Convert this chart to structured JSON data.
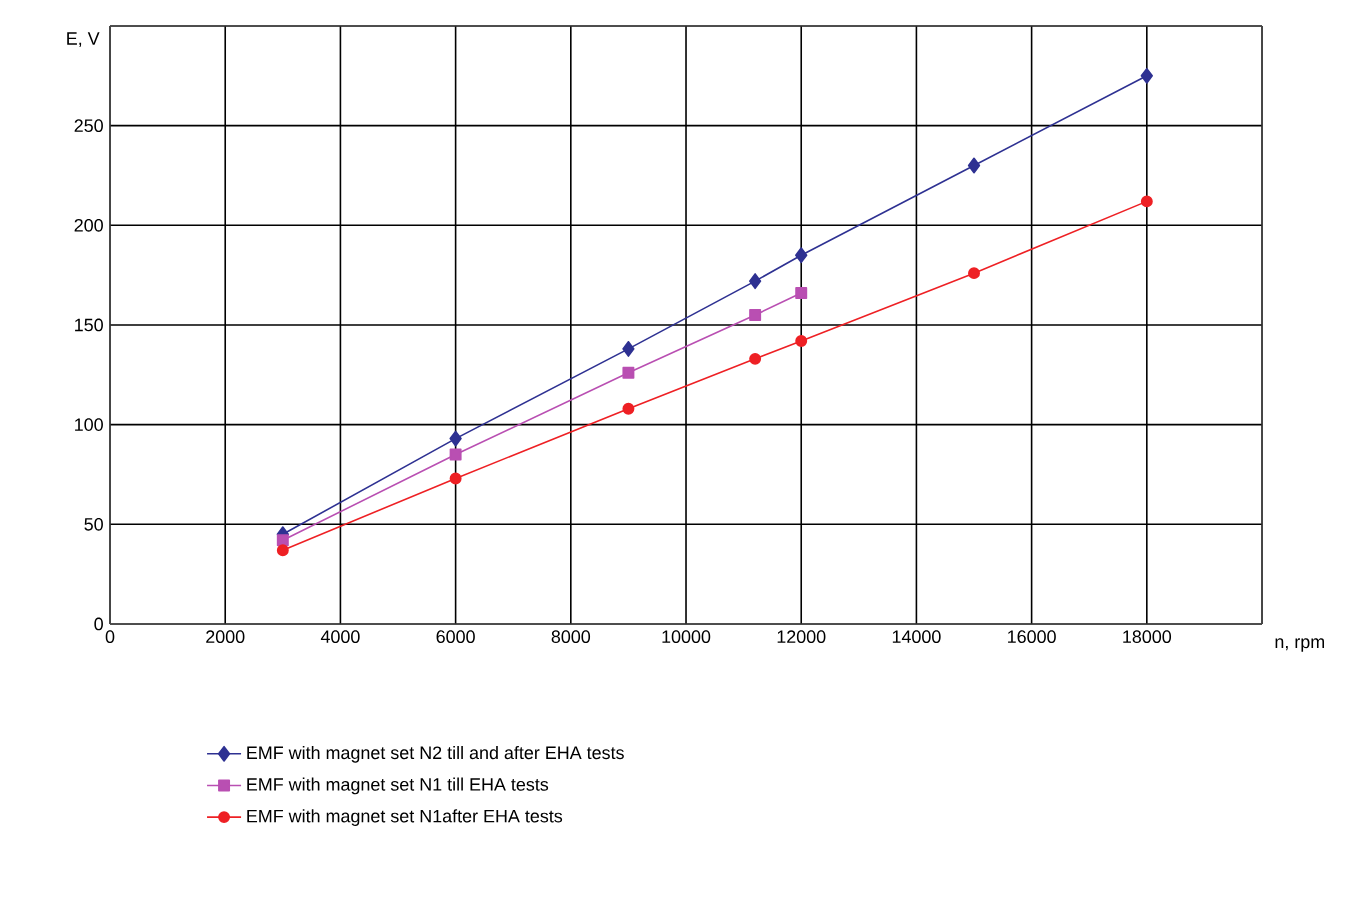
{
  "chart_data": {
    "type": "line",
    "xlabel": "n, rpm",
    "ylabel": "E, V",
    "xlim": [
      0,
      20000
    ],
    "ylim": [
      0,
      300
    ],
    "xticks": [
      0,
      2000,
      4000,
      6000,
      8000,
      10000,
      12000,
      14000,
      16000,
      18000,
      {
        "value": 20000,
        "label": null
      }
    ],
    "yticks": [
      0,
      50,
      100,
      150,
      200,
      250,
      {
        "value": 300,
        "label": null
      }
    ],
    "grid": true,
    "legend": "bottom",
    "series": [
      {
        "name": "EMF with magnet set N2 till and after EHA tests",
        "color": "#2e3192",
        "marker": "diamond",
        "x": [
          3000,
          6000,
          9000,
          11200,
          12000,
          15000,
          18000
        ],
        "values": [
          45,
          93,
          138,
          172,
          185,
          230,
          275
        ]
      },
      {
        "name": "EMF with magnet set N1 till EHA tests",
        "color": "#b94fb2",
        "marker": "square",
        "x": [
          3000,
          6000,
          9000,
          11200,
          12000
        ],
        "values": [
          42,
          85,
          126,
          155,
          166
        ]
      },
      {
        "name": "EMF with magnet set N1after EHA tests",
        "color": "#ee2024",
        "marker": "circle",
        "x": [
          3000,
          6000,
          9000,
          11200,
          12000,
          15000,
          18000
        ],
        "values": [
          37,
          73,
          108,
          133,
          142,
          176,
          212
        ]
      }
    ]
  }
}
